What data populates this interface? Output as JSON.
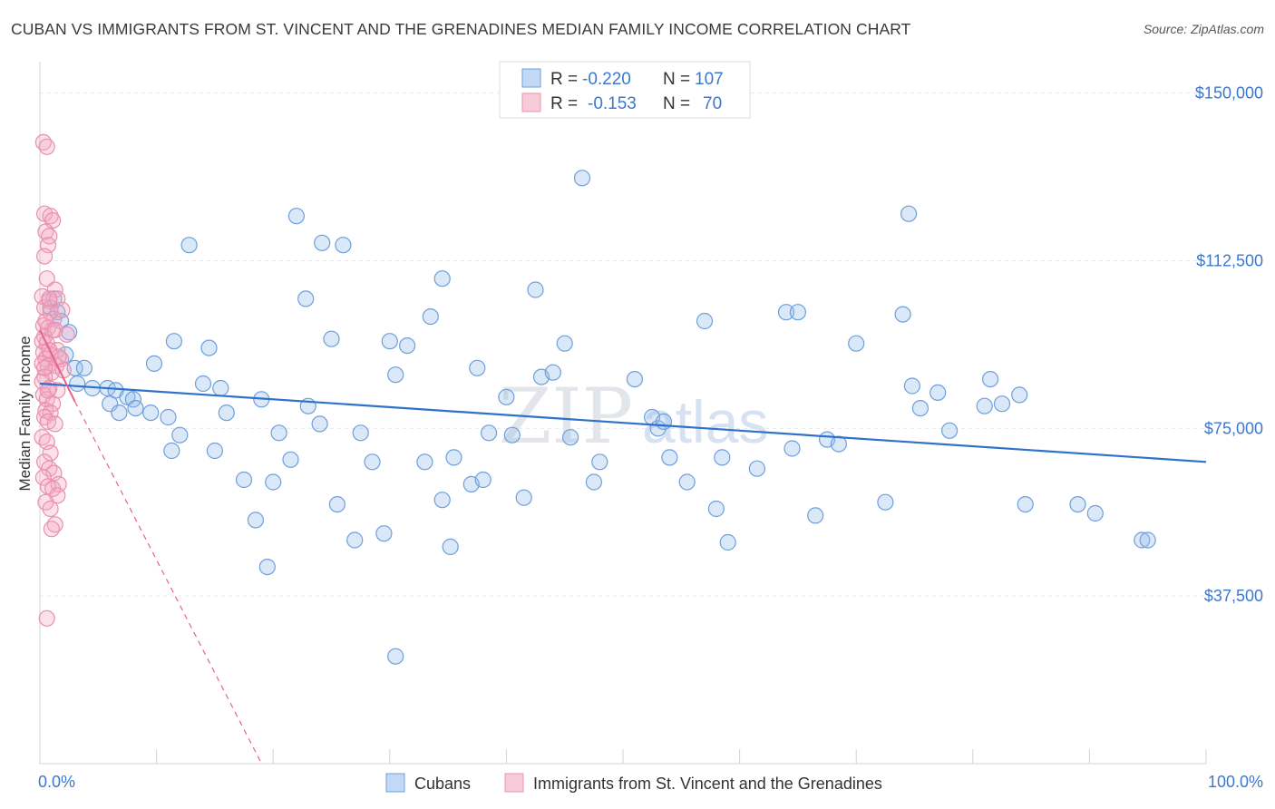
{
  "title": "CUBAN VS IMMIGRANTS FROM ST. VINCENT AND THE GRENADINES MEDIAN FAMILY INCOME CORRELATION CHART",
  "source": "Source: ZipAtlas.com",
  "watermark": {
    "zip": "ZIP",
    "atlas": "atlas"
  },
  "legend_top": {
    "r_label": "R =",
    "n_label": "N =",
    "rows": [
      {
        "series": "Cubans",
        "r": "-0.220",
        "n": "107"
      },
      {
        "series": "Immigrants from St. Vincent and the Grenadines",
        "r": "-0.153",
        "n": "70"
      }
    ]
  },
  "chart_data": {
    "type": "scatter",
    "title": "CUBAN VS IMMIGRANTS FROM ST. VINCENT AND THE GRENADINES MEDIAN FAMILY INCOME CORRELATION CHART",
    "xlabel": "",
    "ylabel": "Median Family Income",
    "xlim": [
      0,
      100
    ],
    "ylim": [
      0,
      155000
    ],
    "x_tick_labels": [
      "0.0%",
      "100.0%"
    ],
    "y_ticks": [
      37500,
      75000,
      112500,
      150000
    ],
    "y_tick_labels": [
      "$37,500",
      "$75,000",
      "$112,500",
      "$150,000"
    ],
    "grid": true,
    "legend_position": "bottom-center",
    "colors": {
      "Cubans": "#5b93d8",
      "Immigrants from St. Vincent and the Grenadines": "#ee86a8",
      "trend_blue": "#2f72cc",
      "trend_pink": "#e8628e"
    },
    "series": [
      {
        "name": "Cubans",
        "points": [
          [
            0.9,
            102000
          ],
          [
            1.2,
            104000
          ],
          [
            1.5,
            101000
          ],
          [
            1.8,
            99000
          ],
          [
            2.5,
            96500
          ],
          [
            2.2,
            91500
          ],
          [
            3.0,
            88500
          ],
          [
            3.8,
            88500
          ],
          [
            3.2,
            85000
          ],
          [
            4.5,
            84000
          ],
          [
            5.8,
            84000
          ],
          [
            6.5,
            83500
          ],
          [
            6.0,
            80500
          ],
          [
            7.5,
            82000
          ],
          [
            8.0,
            81500
          ],
          [
            6.8,
            78500
          ],
          [
            8.2,
            79500
          ],
          [
            9.5,
            78500
          ],
          [
            11.0,
            77500
          ],
          [
            12.0,
            73500
          ],
          [
            11.3,
            70000
          ],
          [
            9.8,
            89500
          ],
          [
            11.5,
            94500
          ],
          [
            12.8,
            116000
          ],
          [
            14.5,
            93000
          ],
          [
            14.0,
            85000
          ],
          [
            15.5,
            84000
          ],
          [
            16.0,
            78500
          ],
          [
            15.0,
            70000
          ],
          [
            17.5,
            63500
          ],
          [
            18.5,
            54500
          ],
          [
            19.5,
            44000
          ],
          [
            20.0,
            63000
          ],
          [
            19.0,
            81500
          ],
          [
            20.5,
            74000
          ],
          [
            21.5,
            68000
          ],
          [
            22.0,
            122500
          ],
          [
            22.8,
            104000
          ],
          [
            24.0,
            76000
          ],
          [
            23.0,
            80000
          ],
          [
            24.2,
            116500
          ],
          [
            25.0,
            95000
          ],
          [
            25.5,
            58000
          ],
          [
            26.0,
            116000
          ],
          [
            27.5,
            74000
          ],
          [
            27.0,
            50000
          ],
          [
            28.5,
            67500
          ],
          [
            29.5,
            51500
          ],
          [
            30.0,
            94500
          ],
          [
            30.5,
            87000
          ],
          [
            31.5,
            93500
          ],
          [
            30.5,
            24000
          ],
          [
            33.0,
            67500
          ],
          [
            34.5,
            108500
          ],
          [
            35.2,
            48500
          ],
          [
            33.5,
            100000
          ],
          [
            34.5,
            59000
          ],
          [
            35.5,
            68500
          ],
          [
            37.0,
            62500
          ],
          [
            37.5,
            88500
          ],
          [
            38.5,
            74000
          ],
          [
            38.0,
            63500
          ],
          [
            40.0,
            82000
          ],
          [
            40.5,
            73500
          ],
          [
            41.5,
            59500
          ],
          [
            42.5,
            106000
          ],
          [
            43.0,
            86500
          ],
          [
            44.0,
            87500
          ],
          [
            45.5,
            73000
          ],
          [
            45.0,
            94000
          ],
          [
            46.5,
            131000
          ],
          [
            47.5,
            63000
          ],
          [
            48.0,
            67500
          ],
          [
            51.0,
            86000
          ],
          [
            52.5,
            77500
          ],
          [
            53.0,
            75000
          ],
          [
            53.5,
            76500
          ],
          [
            54.0,
            68500
          ],
          [
            55.5,
            63000
          ],
          [
            57.0,
            99000
          ],
          [
            58.5,
            68500
          ],
          [
            58.0,
            57000
          ],
          [
            59.0,
            49500
          ],
          [
            61.5,
            66000
          ],
          [
            64.5,
            70500
          ],
          [
            64.0,
            101000
          ],
          [
            65.0,
            101000
          ],
          [
            66.5,
            55500
          ],
          [
            67.5,
            72500
          ],
          [
            68.5,
            71500
          ],
          [
            70.0,
            94000
          ],
          [
            72.5,
            58500
          ],
          [
            74.0,
            100500
          ],
          [
            74.5,
            123000
          ],
          [
            74.8,
            84500
          ],
          [
            75.5,
            79500
          ],
          [
            77.0,
            83000
          ],
          [
            78.0,
            74500
          ],
          [
            81.0,
            80000
          ],
          [
            81.5,
            86000
          ],
          [
            82.5,
            80500
          ],
          [
            84.0,
            82500
          ],
          [
            84.5,
            58000
          ],
          [
            89.0,
            58000
          ],
          [
            90.5,
            56000
          ],
          [
            94.5,
            50000
          ],
          [
            95.0,
            50000
          ]
        ]
      },
      {
        "name": "Immigrants from St. Vincent and the Grenadines",
        "points": [
          [
            0.3,
            139000
          ],
          [
            0.6,
            138000
          ],
          [
            0.4,
            123000
          ],
          [
            0.9,
            122500
          ],
          [
            1.1,
            121500
          ],
          [
            0.5,
            119000
          ],
          [
            0.8,
            118000
          ],
          [
            0.7,
            116000
          ],
          [
            0.4,
            113500
          ],
          [
            0.6,
            108500
          ],
          [
            1.3,
            106000
          ],
          [
            0.2,
            104500
          ],
          [
            0.8,
            103500
          ],
          [
            1.5,
            104000
          ],
          [
            0.4,
            102000
          ],
          [
            0.9,
            101000
          ],
          [
            1.2,
            99500
          ],
          [
            0.3,
            98000
          ],
          [
            0.7,
            97500
          ],
          [
            1.1,
            97000
          ],
          [
            0.4,
            95500
          ],
          [
            0.2,
            94500
          ],
          [
            0.6,
            94000
          ],
          [
            1.5,
            92500
          ],
          [
            0.3,
            92000
          ],
          [
            0.9,
            91500
          ],
          [
            0.5,
            90500
          ],
          [
            1.8,
            90500
          ],
          [
            0.2,
            89500
          ],
          [
            0.7,
            89000
          ],
          [
            1.4,
            89000
          ],
          [
            2.0,
            88000
          ],
          [
            1.0,
            87500
          ],
          [
            0.4,
            86500
          ],
          [
            0.2,
            85500
          ],
          [
            0.8,
            84000
          ],
          [
            1.5,
            83500
          ],
          [
            0.3,
            82500
          ],
          [
            0.6,
            81500
          ],
          [
            1.1,
            80500
          ],
          [
            0.5,
            79000
          ],
          [
            0.9,
            78500
          ],
          [
            0.4,
            77500
          ],
          [
            0.7,
            76500
          ],
          [
            1.3,
            76000
          ],
          [
            0.2,
            73000
          ],
          [
            0.6,
            72000
          ],
          [
            0.9,
            69500
          ],
          [
            0.4,
            67500
          ],
          [
            0.8,
            66000
          ],
          [
            1.2,
            65000
          ],
          [
            0.3,
            64000
          ],
          [
            1.6,
            62500
          ],
          [
            0.7,
            62000
          ],
          [
            1.1,
            61500
          ],
          [
            1.5,
            60000
          ],
          [
            0.5,
            58500
          ],
          [
            0.9,
            57000
          ],
          [
            1.3,
            53500
          ],
          [
            1.0,
            52500
          ],
          [
            0.6,
            32500
          ],
          [
            0.8,
            104000
          ],
          [
            1.9,
            101500
          ],
          [
            0.5,
            99000
          ],
          [
            1.3,
            97000
          ],
          [
            2.3,
            96000
          ],
          [
            0.8,
            92500
          ],
          [
            1.6,
            91000
          ],
          [
            0.4,
            88500
          ],
          [
            0.7,
            83500
          ]
        ]
      }
    ],
    "trend_lines": [
      {
        "series": "Cubans",
        "x": [
          0,
          100
        ],
        "y": [
          85000,
          67500
        ]
      },
      {
        "series": "Immigrants from St. Vincent and the Grenadines",
        "x": [
          0,
          3,
          20
        ],
        "y": [
          97000,
          81000,
          -5000
        ]
      }
    ]
  }
}
